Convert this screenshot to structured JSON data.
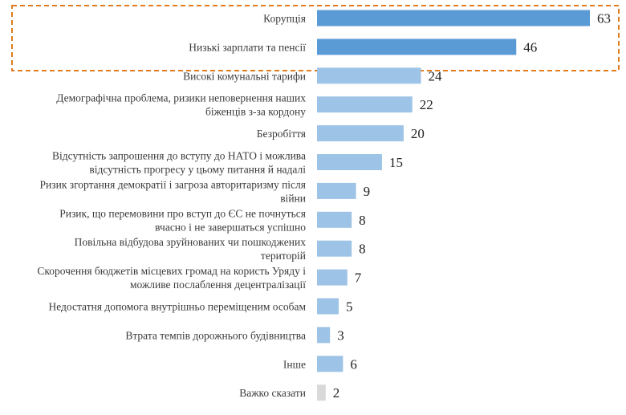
{
  "chart_data": {
    "type": "bar",
    "orientation": "horizontal",
    "categories": [
      [
        "Корупція"
      ],
      [
        "Низькі зарплати та пенсії"
      ],
      [
        "Високі комунальні тарифи"
      ],
      [
        "Демографічна проблема, ризики неповернення наших",
        "біженців з-за кордону"
      ],
      [
        "Безробіття"
      ],
      [
        "Відсутність запрошення до вступу до НАТО і можлива",
        "відсутність прогресу у цьому питання й надалі"
      ],
      [
        "Ризик  згортання демократії і загроза авторитаризму після",
        "війни"
      ],
      [
        "Ризик, що перемовини про вступ до ЄС не почнуться",
        "вчасно і не завершаться успішно"
      ],
      [
        "Повільна відбудова зруйнованих чи пошкоджених",
        "територій"
      ],
      [
        "Скорочення бюджетів місцевих громад на користь Уряду і",
        "можливе послаблення децентралізації"
      ],
      [
        "Недостатня допомога внутрішньо переміщеним особам"
      ],
      [
        "Втрата темпів дорожнього будівництва"
      ],
      [
        "Інше"
      ],
      [
        "Важко сказати"
      ]
    ],
    "values": [
      63,
      46,
      24,
      22,
      20,
      15,
      9,
      8,
      8,
      7,
      5,
      3,
      6,
      2
    ],
    "highlighted": [
      0,
      1
    ],
    "grid": false,
    "legend": "none",
    "colors": {
      "highlighted_bar": "#5b9bd5",
      "bar": "#9dc3e6",
      "other_bar": "#d9d9d9",
      "other_label": "#bfbfbf",
      "highlight_box": "#e07b20"
    }
  }
}
